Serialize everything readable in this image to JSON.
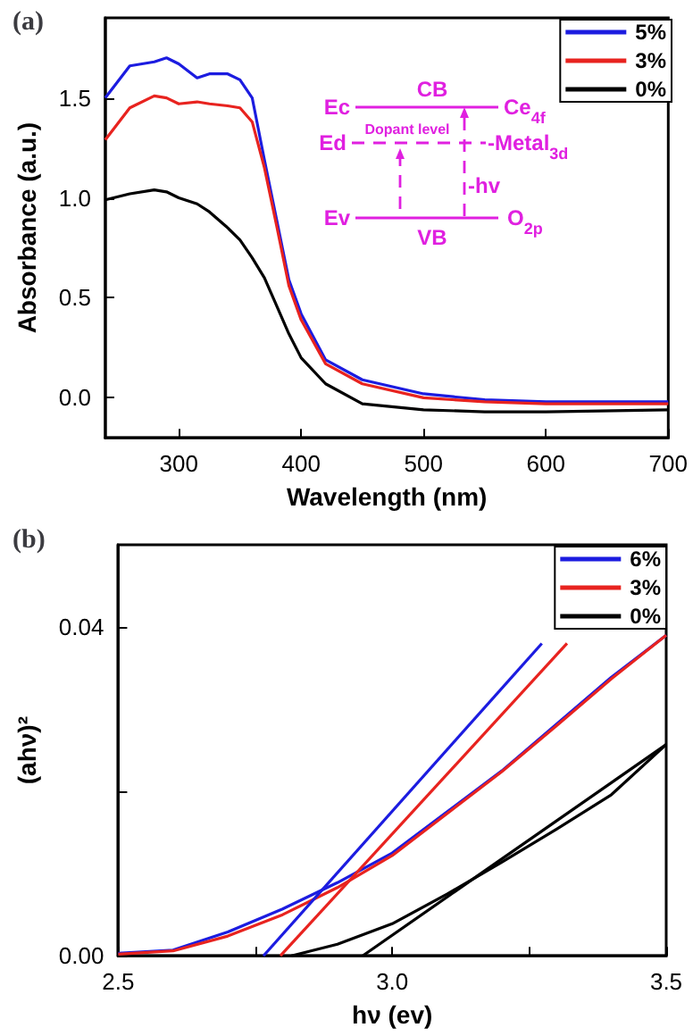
{
  "chart_data": [
    {
      "type": "line",
      "title": "(a)",
      "xlabel": "Wavelength (nm)",
      "ylabel": "Absorbance (a.u.)",
      "x": [
        240,
        260,
        280,
        290,
        300,
        315,
        325,
        340,
        350,
        360,
        370,
        380,
        390,
        400,
        420,
        450,
        500,
        550,
        600,
        700
      ],
      "series": [
        {
          "name": "5%",
          "color": "#1c1ce0",
          "values": [
            1.5,
            1.66,
            1.68,
            1.7,
            1.67,
            1.6,
            1.62,
            1.62,
            1.59,
            1.5,
            1.19,
            0.89,
            0.59,
            0.42,
            0.19,
            0.09,
            0.02,
            -0.01,
            -0.02,
            -0.02
          ]
        },
        {
          "name": "3%",
          "color": "#e8231f",
          "values": [
            1.29,
            1.45,
            1.51,
            1.5,
            1.47,
            1.48,
            1.47,
            1.46,
            1.45,
            1.38,
            1.15,
            0.86,
            0.56,
            0.39,
            0.17,
            0.07,
            0.0,
            -0.02,
            -0.03,
            -0.03
          ]
        },
        {
          "name": "0%",
          "color": "#000000",
          "values": [
            0.99,
            1.02,
            1.04,
            1.03,
            1.0,
            0.97,
            0.93,
            0.85,
            0.79,
            0.7,
            0.6,
            0.46,
            0.32,
            0.2,
            0.07,
            -0.03,
            -0.06,
            -0.07,
            -0.07,
            -0.06
          ]
        }
      ],
      "xlim": [
        240,
        700
      ],
      "ylim": [
        -0.2,
        1.9
      ],
      "xticks": [
        300,
        400,
        500,
        600,
        700
      ],
      "yticks": [
        {
          "value": 0,
          "label": "0.0"
        },
        {
          "value": 0.5,
          "label": "0.5"
        },
        {
          "value": 1,
          "label": "1.0"
        },
        {
          "value": 1.5,
          "label": "1.5"
        }
      ],
      "legend": "top right",
      "marker": "none",
      "annotations": [
        "CB",
        "Ec",
        "Ce$_{4f}$",
        "Ed",
        "Dopant level",
        "-Metal$_{3d}$",
        "-hv",
        "Ev",
        "VB",
        "O$_{2p}$"
      ]
    },
    {
      "type": "line",
      "title": "(b)",
      "xlabel": "hν (ev)",
      "ylabel": "(ahν)²",
      "x": [
        2.5,
        2.6,
        2.7,
        2.8,
        2.9,
        3.0,
        3.1,
        3.2,
        3.3,
        3.4,
        3.5
      ],
      "series": [
        {
          "name": "6%",
          "color": "#1c1ce0",
          "values": [
            0.0003,
            0.0007,
            0.0029,
            0.0057,
            0.0089,
            0.0125,
            0.0175,
            0.0225,
            0.0282,
            0.0339,
            0.039
          ]
        },
        {
          "name": "3%",
          "color": "#e8231f",
          "values": [
            0.0002,
            0.0006,
            0.0024,
            0.005,
            0.0083,
            0.0122,
            0.0173,
            0.0224,
            0.028,
            0.0337,
            0.039
          ]
        },
        {
          "name": "0%",
          "color": "#000000",
          "x": [
            2.816,
            2.9,
            3.0,
            3.1,
            3.2,
            3.3,
            3.4,
            3.5
          ],
          "values": [
            0,
            0.0014,
            0.0039,
            0.0075,
            0.0114,
            0.0154,
            0.0196,
            0.0257
          ]
        },
        {
          "type": "line",
          "color": "#1c1ce0",
          "x": [
            2.765,
            3.273
          ],
          "values": [
            0,
            0.038
          ]
        },
        {
          "type": "line",
          "color": "#e8231f",
          "x": [
            2.796,
            3.319
          ],
          "values": [
            0,
            0.038
          ]
        },
        {
          "type": "line",
          "color": "#000000",
          "x": [
            2.946,
            3.5
          ],
          "values": [
            0,
            0.0257
          ]
        }
      ],
      "xlim": [
        2.5,
        3.5
      ],
      "ylim": [
        0,
        0.05
      ],
      "xticks": [
        {
          "value": 2.5,
          "label": "2.5"
        },
        {
          "value": 2.75,
          "label": null
        },
        {
          "value": 3.0,
          "label": "3.0"
        },
        {
          "value": 3.25,
          "label": null
        },
        {
          "value": 3.5,
          "label": "3.5"
        }
      ],
      "yticks": [
        {
          "value": 0,
          "label": "0.00"
        },
        {
          "value": 0.02,
          "label": null
        },
        {
          "value": 0.04,
          "label": "0.04"
        }
      ],
      "legend": "top right",
      "marker": "none"
    }
  ]
}
